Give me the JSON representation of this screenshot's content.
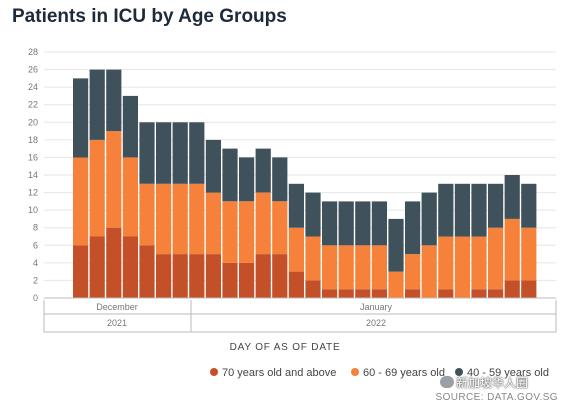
{
  "chart_data": {
    "type": "bar",
    "stacked": true,
    "title": "Patients in ICU by Age Groups",
    "xlabel": "DAY OF AS OF DATE",
    "ylabel": "",
    "ylim": [
      0,
      28
    ],
    "yticks": [
      0,
      2,
      4,
      6,
      8,
      10,
      12,
      14,
      16,
      18,
      20,
      22,
      24,
      26,
      28
    ],
    "grid": true,
    "legend_position": "bottom",
    "x_month_labels": [
      {
        "label": "December",
        "at_bar": 2
      },
      {
        "label": "January",
        "at_bar": 18
      }
    ],
    "x_year_labels": [
      {
        "label": "2021",
        "span": [
          0,
          6
        ]
      },
      {
        "label": "2022",
        "span": [
          7,
          26
        ]
      }
    ],
    "series": [
      {
        "name": "70 years old and above",
        "color": "#c4502a",
        "values": [
          6,
          7,
          8,
          7,
          6,
          5,
          5,
          5,
          5,
          4,
          4,
          5,
          5,
          3,
          2,
          1,
          1,
          1,
          1,
          0,
          1,
          0,
          1,
          0,
          1,
          1,
          2,
          2
        ]
      },
      {
        "name": "60 - 69 years old",
        "color": "#f5813b",
        "values": [
          10,
          11,
          11,
          9,
          7,
          8,
          8,
          8,
          7,
          7,
          7,
          7,
          6,
          5,
          5,
          5,
          5,
          5,
          5,
          3,
          4,
          6,
          6,
          7,
          6,
          7,
          7,
          6
        ]
      },
      {
        "name": "40 - 59 years old",
        "color": "#3f525c",
        "values": [
          9,
          8,
          7,
          7,
          7,
          7,
          7,
          7,
          6,
          6,
          5,
          5,
          5,
          5,
          5,
          5,
          5,
          5,
          5,
          6,
          6,
          6,
          6,
          6,
          6,
          5,
          5,
          5
        ]
      }
    ]
  },
  "labels": {
    "title": "Patients in ICU by Age Groups",
    "xlabel": "DAY OF AS OF DATE",
    "source": "SOURCE: DATA.GOV.SG",
    "watermark": "新加坡华人圈",
    "month_december": "December",
    "month_january": "January",
    "year_2021": "2021",
    "year_2022": "2022",
    "legend": [
      "70 years old and above",
      "60 - 69 years old",
      "40 - 59 years old"
    ]
  },
  "colors": {
    "s70": "#c4502a",
    "s60": "#f5813b",
    "s40": "#3f525c",
    "grid": "#e6e6e6"
  }
}
